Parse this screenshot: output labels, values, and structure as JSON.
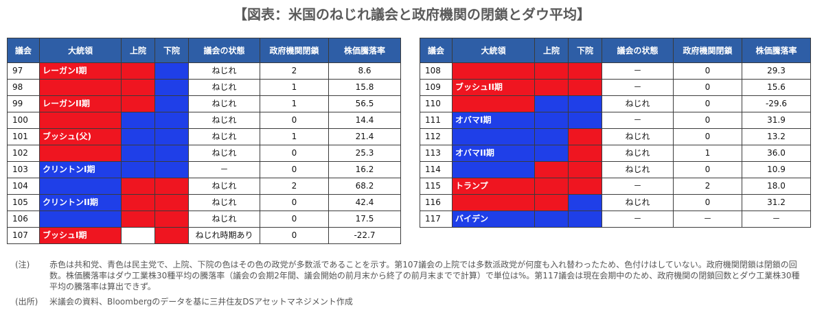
{
  "title": "【図表：米国のねじれ議会と政府機関の閉鎖とダウ平均】",
  "colors": {
    "header": "#2e5ea6",
    "red": "#ef1520",
    "blue": "#1f3fe8",
    "white": "#ffffff"
  },
  "columns": [
    "議会",
    "大統領",
    "上院",
    "下院",
    "議会の状態",
    "政府機関閉鎖",
    "株価騰落率"
  ],
  "tables": [
    {
      "rows": [
        {
          "congress": "97",
          "president": "レーガンI期",
          "president_fill": "red",
          "senate_fill": "red",
          "house_fill": "blue",
          "status": "ねじれ",
          "shutdowns": "2",
          "dow_change": "8.6"
        },
        {
          "congress": "98",
          "president_fill": "red",
          "senate_fill": "red",
          "house_fill": "blue",
          "status": "ねじれ",
          "shutdowns": "1",
          "dow_change": "15.8"
        },
        {
          "congress": "99",
          "president": "レーガンII期",
          "president_fill": "red",
          "senate_fill": "red",
          "house_fill": "blue",
          "status": "ねじれ",
          "shutdowns": "1",
          "dow_change": "56.5"
        },
        {
          "congress": "100",
          "president_fill": "red",
          "senate_fill": "blue",
          "house_fill": "blue",
          "status": "ねじれ",
          "shutdowns": "0",
          "dow_change": "14.4"
        },
        {
          "congress": "101",
          "president": "ブッシュ(父)",
          "president_fill": "red",
          "senate_fill": "blue",
          "house_fill": "blue",
          "status": "ねじれ",
          "shutdowns": "1",
          "dow_change": "21.4"
        },
        {
          "congress": "102",
          "president_fill": "red",
          "senate_fill": "blue",
          "house_fill": "blue",
          "status": "ねじれ",
          "shutdowns": "0",
          "dow_change": "25.3"
        },
        {
          "congress": "103",
          "president": "クリントンI期",
          "president_fill": "blue",
          "senate_fill": "blue",
          "house_fill": "blue",
          "status": "－",
          "shutdowns": "0",
          "dow_change": "16.2"
        },
        {
          "congress": "104",
          "president_fill": "blue",
          "senate_fill": "red",
          "house_fill": "red",
          "status": "ねじれ",
          "shutdowns": "2",
          "dow_change": "68.2"
        },
        {
          "congress": "105",
          "president": "クリントンII期",
          "president_fill": "blue",
          "senate_fill": "red",
          "house_fill": "red",
          "status": "ねじれ",
          "shutdowns": "0",
          "dow_change": "42.4"
        },
        {
          "congress": "106",
          "president_fill": "blue",
          "senate_fill": "red",
          "house_fill": "red",
          "status": "ねじれ",
          "shutdowns": "0",
          "dow_change": "17.5"
        },
        {
          "congress": "107",
          "president": "ブッシュI期",
          "president_fill": "red",
          "senate_fill": "white",
          "house_fill": "red",
          "status": "ねじれ時期あり",
          "shutdowns": "0",
          "dow_change": "-22.7"
        }
      ]
    },
    {
      "rows": [
        {
          "congress": "108",
          "president_fill": "red",
          "senate_fill": "red",
          "house_fill": "red",
          "status": "－",
          "shutdowns": "0",
          "dow_change": "29.3"
        },
        {
          "congress": "109",
          "president": "ブッシュII期",
          "president_fill": "red",
          "senate_fill": "red",
          "house_fill": "red",
          "status": "－",
          "shutdowns": "0",
          "dow_change": "15.6"
        },
        {
          "congress": "110",
          "president_fill": "red",
          "senate_fill": "blue",
          "house_fill": "blue",
          "status": "ねじれ",
          "shutdowns": "0",
          "dow_change": "-29.6"
        },
        {
          "congress": "111",
          "president": "オバマI期",
          "president_fill": "blue",
          "senate_fill": "blue",
          "house_fill": "blue",
          "status": "－",
          "shutdowns": "0",
          "dow_change": "31.9"
        },
        {
          "congress": "112",
          "president_fill": "blue",
          "senate_fill": "blue",
          "house_fill": "red",
          "status": "ねじれ",
          "shutdowns": "0",
          "dow_change": "13.2"
        },
        {
          "congress": "113",
          "president": "オバマII期",
          "president_fill": "blue",
          "senate_fill": "blue",
          "house_fill": "red",
          "status": "ねじれ",
          "shutdowns": "1",
          "dow_change": "36.0"
        },
        {
          "congress": "114",
          "president_fill": "blue",
          "senate_fill": "red",
          "house_fill": "red",
          "status": "ねじれ",
          "shutdowns": "0",
          "dow_change": "10.9"
        },
        {
          "congress": "115",
          "president": "トランプ",
          "president_fill": "red",
          "senate_fill": "red",
          "house_fill": "red",
          "status": "－",
          "shutdowns": "2",
          "dow_change": "18.0"
        },
        {
          "congress": "116",
          "president_fill": "red",
          "senate_fill": "red",
          "house_fill": "blue",
          "status": "ねじれ",
          "shutdowns": "0",
          "dow_change": "31.2"
        },
        {
          "congress": "117",
          "president": "バイデン",
          "president_fill": "blue",
          "senate_fill": "blue",
          "house_fill": "blue",
          "status": "－",
          "shutdowns": "－",
          "dow_change": "－"
        }
      ]
    }
  ],
  "notes": {
    "note_label": "(注)",
    "note_text": "赤色は共和党、青色は民主党で、上院、下院の色はその色の政党が多数派であることを示す。第107議会の上院では多数派政党が何度も入れ替わったため、色付けはしていない。政府機関閉鎖は閉鎖の回数。株価騰落率はダウ工業株30種平均の騰落率（議会の会期2年間、議会開始の前月末から終了の前月末までで計算）で単位は%。第117議会は現在会期中のため、政府機関の閉鎖回数とダウ工業株30種平均の騰落率は算出できず。",
    "source_label": "(出所)",
    "source_text": "米議会の資料、Bloombergのデータを基に三井住友DSアセットマネジメント作成"
  }
}
